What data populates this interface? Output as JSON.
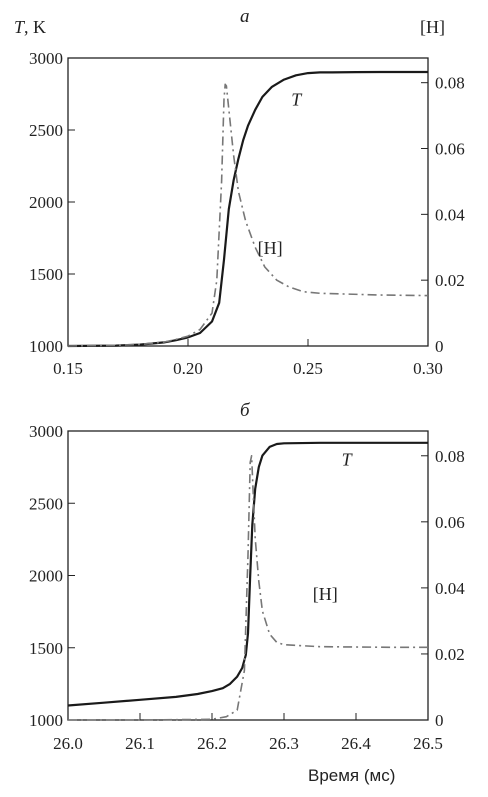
{
  "chart_data": [
    {
      "type": "line",
      "panel_label": "a",
      "ylabel_left": "T, K",
      "ylabel_right": "[H]",
      "xlabel": "",
      "xlim": [
        0.15,
        0.3
      ],
      "ylim_left": [
        1000,
        3000
      ],
      "ylim_right": [
        0,
        0.0875
      ],
      "x_ticks": [
        "0.15",
        "0.20",
        "0.25",
        "0.30"
      ],
      "y_ticks_left": [
        "1000",
        "1500",
        "2000",
        "2500",
        "3000"
      ],
      "y_ticks_right": [
        "0",
        "0.02",
        "0.04",
        "0.06",
        "0.08"
      ],
      "series": [
        {
          "name": "T",
          "axis": "left",
          "style": "solid",
          "color": "#1a1a1a",
          "x": [
            0.15,
            0.17,
            0.18,
            0.19,
            0.195,
            0.2,
            0.205,
            0.21,
            0.213,
            0.215,
            0.217,
            0.219,
            0.221,
            0.223,
            0.225,
            0.228,
            0.231,
            0.235,
            0.24,
            0.245,
            0.25,
            0.255,
            0.26,
            0.27,
            0.28,
            0.29,
            0.3
          ],
          "y": [
            1000,
            1003,
            1010,
            1025,
            1040,
            1060,
            1090,
            1170,
            1300,
            1600,
            1950,
            2150,
            2300,
            2430,
            2530,
            2640,
            2730,
            2800,
            2850,
            2880,
            2895,
            2900,
            2900,
            2902,
            2903,
            2903,
            2903
          ]
        },
        {
          "name": "[H]",
          "axis": "right",
          "style": "dash-dot",
          "color": "#777777",
          "x": [
            0.15,
            0.17,
            0.18,
            0.19,
            0.195,
            0.2,
            0.205,
            0.21,
            0.212,
            0.214,
            0.215,
            0.2155,
            0.216,
            0.217,
            0.219,
            0.221,
            0.224,
            0.228,
            0.232,
            0.237,
            0.242,
            0.248,
            0.255,
            0.265,
            0.28,
            0.3
          ],
          "y": [
            0.0,
            0.0002,
            0.0005,
            0.0012,
            0.002,
            0.003,
            0.005,
            0.01,
            0.02,
            0.05,
            0.075,
            0.0795,
            0.079,
            0.072,
            0.058,
            0.047,
            0.038,
            0.03,
            0.024,
            0.02,
            0.018,
            0.0165,
            0.016,
            0.0158,
            0.0155,
            0.0153
          ]
        }
      ],
      "annotations": [
        {
          "text": "T",
          "x": 0.243,
          "y_left": 2670,
          "italic": true
        },
        {
          "text": "[H]",
          "x": 0.229,
          "y_left": 1640,
          "italic": false
        }
      ]
    },
    {
      "type": "line",
      "panel_label": "б",
      "ylabel_left": "",
      "ylabel_right": "",
      "xlabel": "Время (мс)",
      "xlim": [
        26.0,
        26.5
      ],
      "ylim_left": [
        1000,
        3000
      ],
      "ylim_right": [
        0,
        0.0875
      ],
      "x_ticks": [
        "26.0",
        "26.1",
        "26.2",
        "26.3",
        "26.4",
        "26.5"
      ],
      "y_ticks_left": [
        "1000",
        "1500",
        "2000",
        "2500",
        "3000"
      ],
      "y_ticks_right": [
        "0",
        "0.02",
        "0.04",
        "0.06",
        "0.08"
      ],
      "series": [
        {
          "name": "T",
          "axis": "left",
          "style": "solid",
          "color": "#1a1a1a",
          "x": [
            26.0,
            26.05,
            26.1,
            26.15,
            26.18,
            26.2,
            26.215,
            26.225,
            26.235,
            26.242,
            26.247,
            26.25,
            26.253,
            26.256,
            26.26,
            26.265,
            26.27,
            26.28,
            26.29,
            26.3,
            26.35,
            26.4,
            26.45,
            26.5
          ],
          "y": [
            1100,
            1120,
            1140,
            1160,
            1180,
            1200,
            1220,
            1250,
            1300,
            1360,
            1450,
            1600,
            2000,
            2350,
            2600,
            2750,
            2830,
            2890,
            2910,
            2915,
            2918,
            2918,
            2918,
            2918
          ]
        },
        {
          "name": "[H]",
          "axis": "right",
          "style": "dash-dot",
          "color": "#777777",
          "x": [
            26.0,
            26.1,
            26.2,
            26.22,
            26.235,
            26.245,
            26.25,
            26.253,
            26.255,
            26.257,
            26.26,
            26.265,
            26.27,
            26.28,
            26.29,
            26.3,
            26.35,
            26.4,
            26.45,
            26.5
          ],
          "y": [
            0.0,
            0.0,
            0.0002,
            0.001,
            0.003,
            0.015,
            0.05,
            0.078,
            0.08,
            0.07,
            0.055,
            0.042,
            0.033,
            0.026,
            0.0235,
            0.0228,
            0.0222,
            0.0221,
            0.022,
            0.022
          ]
        }
      ],
      "annotations": [
        {
          "text": "T",
          "x": 26.38,
          "y_left": 2760,
          "italic": true
        },
        {
          "text": "[H]",
          "x": 26.34,
          "y_left": 1830,
          "italic": false
        }
      ]
    }
  ]
}
